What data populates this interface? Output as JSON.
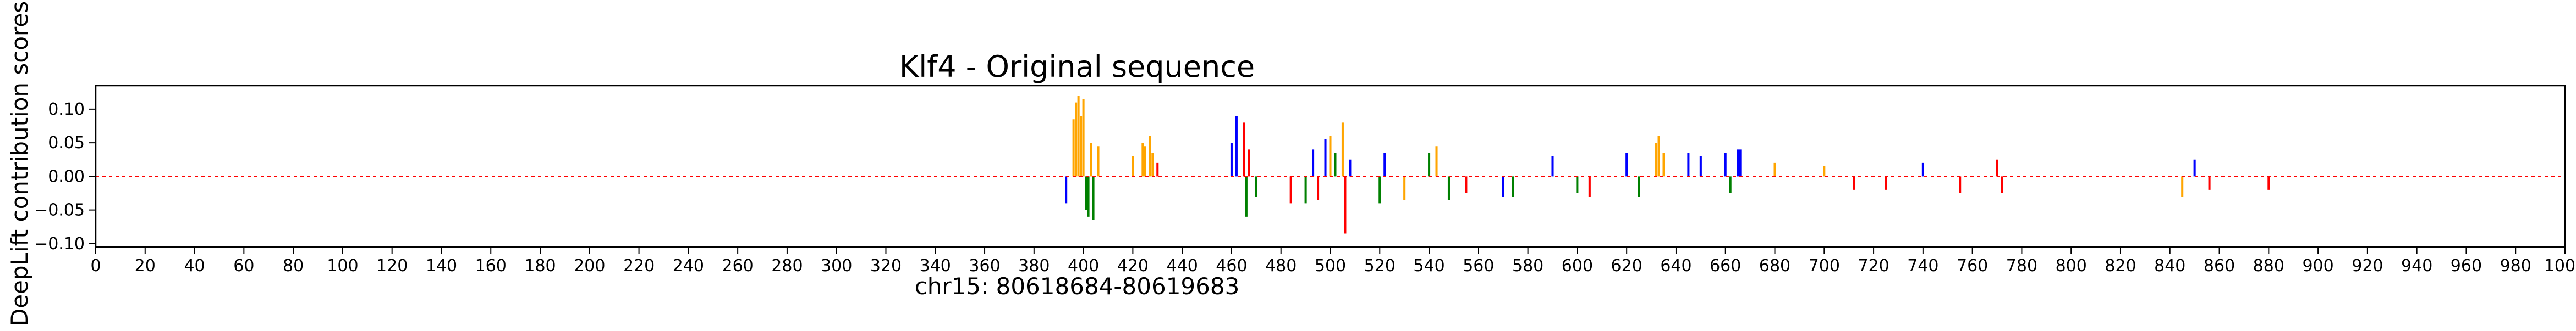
{
  "chart_data": {
    "type": "bar",
    "title": "Klf4 - Original sequence",
    "xlabel": "chr15: 80618684-80619683",
    "ylabel": "DeepLift contribution scores",
    "xlim": [
      0,
      1000
    ],
    "ylim": [
      -0.105,
      0.135
    ],
    "xticks": [
      0,
      20,
      40,
      60,
      80,
      100,
      120,
      140,
      160,
      180,
      200,
      220,
      240,
      260,
      280,
      300,
      320,
      340,
      360,
      380,
      400,
      420,
      440,
      460,
      480,
      500,
      520,
      540,
      560,
      580,
      600,
      620,
      640,
      660,
      680,
      700,
      720,
      740,
      760,
      780,
      800,
      820,
      840,
      860,
      880,
      900,
      920,
      940,
      960,
      980,
      1000
    ],
    "yticks": [
      {
        "value": 0.1,
        "label": "0.10"
      },
      {
        "value": 0.05,
        "label": "0.05"
      },
      {
        "value": 0.0,
        "label": "0.00"
      },
      {
        "value": -0.05,
        "label": "−0.05"
      },
      {
        "value": -0.1,
        "label": "−0.10"
      }
    ],
    "grid": false,
    "bar_colors": {
      "A": "#008000",
      "C": "#0000ff",
      "G": "#ffa500",
      "T": "#ff0000"
    },
    "notable_scores": [
      {
        "x": 393,
        "value": -0.04,
        "base": "C"
      },
      {
        "x": 396,
        "value": 0.085,
        "base": "G"
      },
      {
        "x": 397,
        "value": 0.11,
        "base": "G"
      },
      {
        "x": 398,
        "value": 0.12,
        "base": "G"
      },
      {
        "x": 399,
        "value": 0.09,
        "base": "G"
      },
      {
        "x": 400,
        "value": 0.115,
        "base": "G"
      },
      {
        "x": 401,
        "value": -0.05,
        "base": "A"
      },
      {
        "x": 402,
        "value": -0.06,
        "base": "A"
      },
      {
        "x": 403,
        "value": 0.05,
        "base": "G"
      },
      {
        "x": 404,
        "value": -0.065,
        "base": "A"
      },
      {
        "x": 406,
        "value": 0.045,
        "base": "G"
      },
      {
        "x": 420,
        "value": 0.03,
        "base": "G"
      },
      {
        "x": 424,
        "value": 0.05,
        "base": "G"
      },
      {
        "x": 425,
        "value": 0.045,
        "base": "G"
      },
      {
        "x": 427,
        "value": 0.06,
        "base": "G"
      },
      {
        "x": 428,
        "value": 0.035,
        "base": "G"
      },
      {
        "x": 430,
        "value": 0.02,
        "base": "T"
      },
      {
        "x": 460,
        "value": 0.05,
        "base": "C"
      },
      {
        "x": 462,
        "value": 0.09,
        "base": "C"
      },
      {
        "x": 465,
        "value": 0.08,
        "base": "T"
      },
      {
        "x": 466,
        "value": -0.06,
        "base": "A"
      },
      {
        "x": 467,
        "value": 0.04,
        "base": "T"
      },
      {
        "x": 470,
        "value": -0.03,
        "base": "A"
      },
      {
        "x": 484,
        "value": -0.04,
        "base": "T"
      },
      {
        "x": 490,
        "value": -0.04,
        "base": "A"
      },
      {
        "x": 493,
        "value": 0.04,
        "base": "C"
      },
      {
        "x": 495,
        "value": -0.035,
        "base": "T"
      },
      {
        "x": 498,
        "value": 0.055,
        "base": "C"
      },
      {
        "x": 500,
        "value": 0.06,
        "base": "G"
      },
      {
        "x": 502,
        "value": 0.035,
        "base": "A"
      },
      {
        "x": 505,
        "value": 0.08,
        "base": "G"
      },
      {
        "x": 506,
        "value": -0.085,
        "base": "T"
      },
      {
        "x": 508,
        "value": 0.025,
        "base": "C"
      },
      {
        "x": 520,
        "value": -0.04,
        "base": "A"
      },
      {
        "x": 522,
        "value": 0.035,
        "base": "C"
      },
      {
        "x": 530,
        "value": -0.035,
        "base": "G"
      },
      {
        "x": 540,
        "value": 0.035,
        "base": "A"
      },
      {
        "x": 543,
        "value": 0.045,
        "base": "G"
      },
      {
        "x": 548,
        "value": -0.035,
        "base": "A"
      },
      {
        "x": 555,
        "value": -0.025,
        "base": "T"
      },
      {
        "x": 570,
        "value": -0.03,
        "base": "C"
      },
      {
        "x": 574,
        "value": -0.03,
        "base": "A"
      },
      {
        "x": 590,
        "value": 0.03,
        "base": "C"
      },
      {
        "x": 600,
        "value": -0.025,
        "base": "A"
      },
      {
        "x": 605,
        "value": -0.03,
        "base": "T"
      },
      {
        "x": 620,
        "value": 0.035,
        "base": "C"
      },
      {
        "x": 625,
        "value": -0.03,
        "base": "A"
      },
      {
        "x": 632,
        "value": 0.05,
        "base": "G"
      },
      {
        "x": 633,
        "value": 0.06,
        "base": "G"
      },
      {
        "x": 635,
        "value": 0.035,
        "base": "G"
      },
      {
        "x": 645,
        "value": 0.035,
        "base": "C"
      },
      {
        "x": 650,
        "value": 0.03,
        "base": "C"
      },
      {
        "x": 660,
        "value": 0.035,
        "base": "C"
      },
      {
        "x": 662,
        "value": -0.025,
        "base": "A"
      },
      {
        "x": 665,
        "value": 0.04,
        "base": "C"
      },
      {
        "x": 666,
        "value": 0.04,
        "base": "C"
      },
      {
        "x": 680,
        "value": 0.02,
        "base": "G"
      },
      {
        "x": 700,
        "value": 0.015,
        "base": "G"
      },
      {
        "x": 712,
        "value": -0.02,
        "base": "T"
      },
      {
        "x": 725,
        "value": -0.02,
        "base": "T"
      },
      {
        "x": 740,
        "value": 0.02,
        "base": "C"
      },
      {
        "x": 755,
        "value": -0.025,
        "base": "T"
      },
      {
        "x": 770,
        "value": 0.025,
        "base": "T"
      },
      {
        "x": 772,
        "value": -0.025,
        "base": "T"
      },
      {
        "x": 845,
        "value": -0.03,
        "base": "G"
      },
      {
        "x": 850,
        "value": 0.025,
        "base": "C"
      },
      {
        "x": 856,
        "value": -0.02,
        "base": "T"
      },
      {
        "x": 880,
        "value": -0.02,
        "base": "T"
      }
    ]
  }
}
